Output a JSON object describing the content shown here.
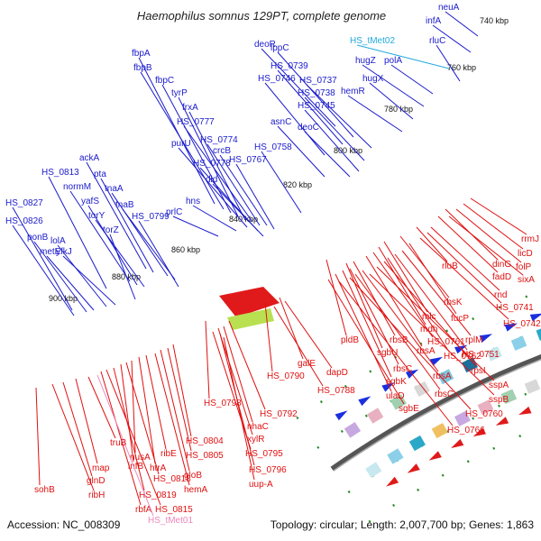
{
  "title": "Haemophilus somnus 129PT, complete genome",
  "footer": {
    "accession": "Accession: NC_008309",
    "topology": "Topology: circular; Length: 2,007,700 bp; Genes: 1,863"
  },
  "colors": {
    "forward_label": "#1a1acc",
    "reverse_label": "#e01010",
    "trna_label": "#22aadd",
    "trna_label_bottom": "#ee88bb",
    "backbone": "#555555"
  },
  "kbp_ticks": [
    "740 kbp",
    "760 kbp",
    "780 kbp",
    "800 kbp",
    "820 kbp",
    "840 kbp",
    "860 kbp",
    "880 kbp",
    "900 kbp"
  ],
  "forward_genes": [
    "neuA",
    "infA",
    "HS_tMet02",
    "rluC",
    "polA",
    "hugZ",
    "hugX",
    "hemR",
    "deoR",
    "lppC",
    "HS_0739",
    "HS_0737",
    "HS_0746",
    "HS_0738",
    "HS_0745",
    "asnC",
    "deoC",
    "fbpA",
    "fbpB",
    "fbpC",
    "tyrP",
    "frxA",
    "HS_0777",
    "HS_0774",
    "purU",
    "crcB",
    "HS_0778",
    "HS_0767",
    "dld",
    "HS_0758",
    "hns",
    "prlC",
    "ackA",
    "pta",
    "HS_0813",
    "normM",
    "tnaA",
    "yafS",
    "tnaB",
    "torY",
    "HS_0799",
    "HS_0827",
    "HS_0826",
    "lolA",
    "torZ",
    "ponB",
    "yfkJ",
    "metE"
  ],
  "reverse_genes": [
    "rrmJ",
    "licD",
    "folP",
    "dinG",
    "sixA",
    "fadD",
    "rluB",
    "rnd",
    "HS_0741",
    "rbsK",
    "HS_0742",
    "mlc",
    "fucP",
    "mdh",
    "rplM",
    "HS_0761",
    "HS_0751",
    "rbsA",
    "HS_0762",
    "rpsI",
    "pldB",
    "rbsB",
    "sgbU",
    "rbsC",
    "sspA",
    "sgbK",
    "rbsA",
    "rbsC",
    "sspB",
    "ulaD",
    "HS_0760",
    "sgbE",
    "HS_0766",
    "galE",
    "dapD",
    "HS_0790",
    "HS_0788",
    "HS_0798",
    "HS_0792",
    "nhaC",
    "xylR",
    "HS_0795",
    "HS_0796",
    "uup-A",
    "HS_0804",
    "HS_0805",
    "gloB",
    "hemA",
    "ribE",
    "htrA",
    "nusA",
    "HS_0818",
    "infB",
    "HS_0819",
    "HS_0815",
    "rbfA",
    "HS_tMet01",
    "truB",
    "map",
    "glnD",
    "ribH",
    "sohB"
  ]
}
